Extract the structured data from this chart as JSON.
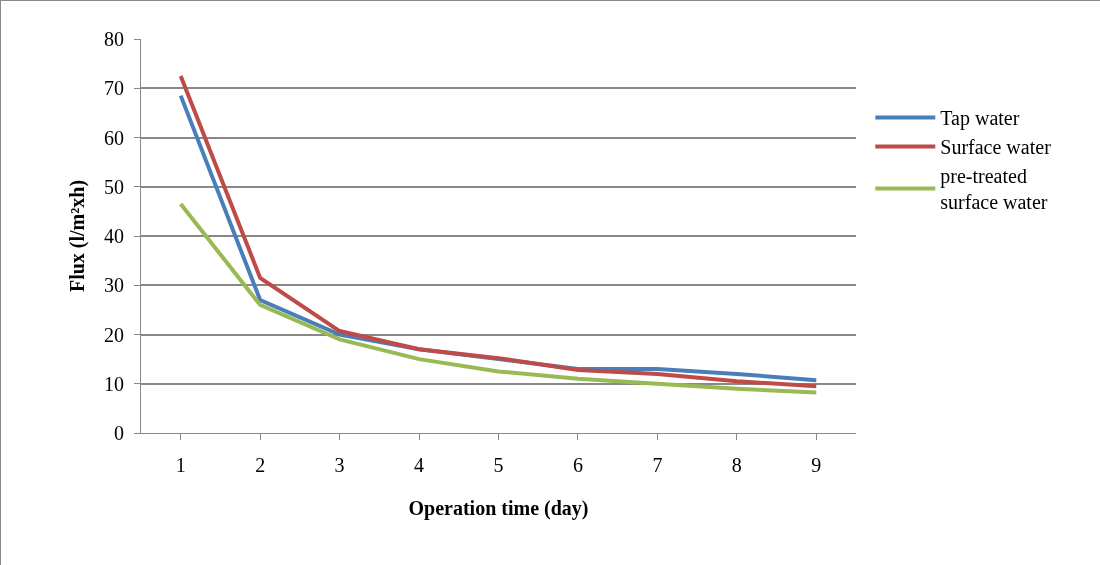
{
  "chart_data": {
    "type": "line",
    "xlabel": "Operation time (day)",
    "ylabel": "Flux (l/m²xh)",
    "categories": [
      "1",
      "2",
      "3",
      "4",
      "5",
      "6",
      "7",
      "8",
      "9"
    ],
    "series": [
      {
        "name": "Tap water",
        "color": "#4a7ebb",
        "values": [
          68.5,
          27,
          20,
          17,
          15,
          13,
          13,
          12,
          10.7
        ]
      },
      {
        "name": "Surface water",
        "color": "#be4b48",
        "values": [
          72.5,
          31.5,
          20.7,
          17,
          15.2,
          12.8,
          12,
          10.5,
          9.5
        ]
      },
      {
        "name": "pre-treated surface water",
        "color": "#98b954",
        "values": [
          46.5,
          26,
          19,
          15,
          12.5,
          11,
          10,
          9,
          8.2
        ]
      }
    ],
    "ylim": [
      0,
      80
    ],
    "yticks": [
      0,
      10,
      20,
      30,
      40,
      50,
      60,
      70,
      80
    ],
    "grid": "y",
    "legend": "right",
    "marker": "none",
    "line_style": "solid"
  }
}
